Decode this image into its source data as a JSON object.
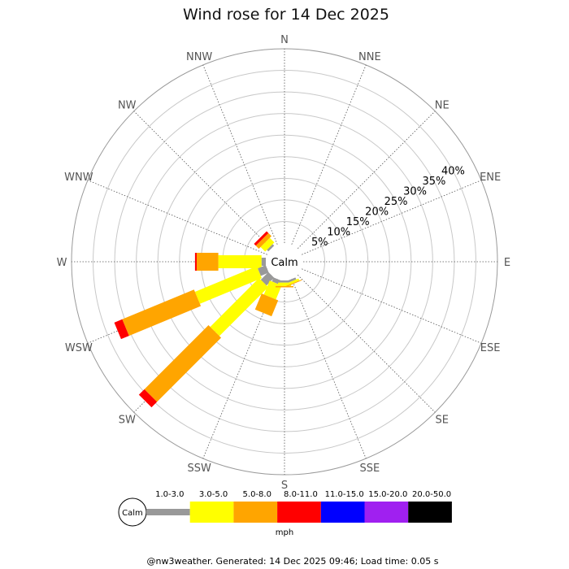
{
  "chart_data": {
    "type": "wind-rose",
    "title": "Wind rose for 14 Dec 2025",
    "directions": [
      "N",
      "NNE",
      "NE",
      "ENE",
      "E",
      "ESE",
      "SE",
      "SSE",
      "S",
      "SSW",
      "SW",
      "WSW",
      "W",
      "WNW",
      "NW",
      "NNW"
    ],
    "radial_ticks": [
      "5%",
      "10%",
      "15%",
      "20%",
      "25%",
      "30%",
      "35%",
      "40%"
    ],
    "radial_values": [
      5,
      10,
      15,
      20,
      25,
      30,
      35,
      40
    ],
    "rmax": 45,
    "calm_label": "Calm",
    "speed_bins": [
      {
        "label": "1.0-3.0",
        "color": "#999999"
      },
      {
        "label": "3.0-5.0",
        "color": "#ffff00"
      },
      {
        "label": "5.0-8.0",
        "color": "#ffa500"
      },
      {
        "label": "8.0-11.0",
        "color": "#ff0000"
      },
      {
        "label": "11.0-15.0",
        "color": "#0000ff"
      },
      {
        "label": "15.0-20.0",
        "color": "#a020f0"
      },
      {
        "label": "20.0-50.0",
        "color": "#000000"
      }
    ],
    "unit": "mph",
    "frequencies": {
      "NW": [
        0.5,
        1.5,
        1.0,
        0.6,
        0,
        0,
        0
      ],
      "W": [
        1.0,
        10.0,
        5.0,
        0.4,
        0,
        0,
        0
      ],
      "WSW": [
        2.0,
        15.5,
        18.0,
        2.0,
        0,
        0,
        0
      ],
      "SW": [
        2.5,
        16.0,
        21.0,
        1.8,
        0,
        0,
        0
      ],
      "SSW": [
        1.0,
        3.5,
        4.0,
        0,
        0,
        0,
        0
      ],
      "S": [
        0.5,
        0.8,
        0.3,
        0,
        0,
        0,
        0
      ],
      "SSE": [
        0.5,
        0.5,
        0.2,
        0,
        0,
        0,
        0
      ]
    }
  },
  "footer": "@nw3weather. Generated: 14 Dec 2025 09:46; Load time: 0.05 s"
}
